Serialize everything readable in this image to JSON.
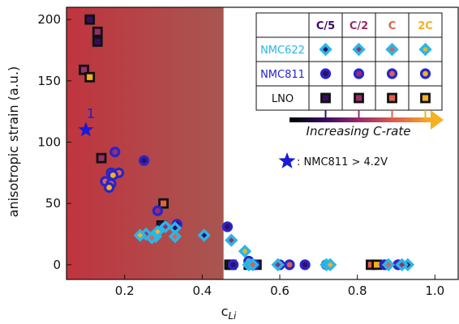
{
  "chart_data": {
    "type": "scatter",
    "xlabel": "c",
    "xlabel_sub": "Li",
    "ylabel": "anisotropic strain (a.u.)",
    "xlim": [
      0.05,
      1.06
    ],
    "ylim": [
      -12,
      210
    ],
    "x_ticks": [
      0.2,
      0.4,
      0.6,
      0.8,
      1.0
    ],
    "x_tick_labels": [
      "0.2",
      "0.4",
      "0.6",
      "0.8",
      "1.0"
    ],
    "y_ticks": [
      0,
      50,
      100,
      150,
      200
    ],
    "y_tick_labels": [
      "0",
      "50",
      "100",
      "150",
      "200"
    ],
    "shaded_region": {
      "x_start": 0.05,
      "x_end": 0.455,
      "color_left": "#c0343f",
      "color_right": "#a85651"
    },
    "rate_colors": {
      "C/5": "#3a0b63",
      "C/2": "#9a2d6b",
      "C": "#e0604a",
      "2C": "#f6b021"
    },
    "material_styles": {
      "NMC622": {
        "marker": "diamond",
        "edge": "#29b6e8"
      },
      "NMC811": {
        "marker": "circle",
        "edge": "#2626c9"
      },
      "LNO": {
        "marker": "square",
        "edge": "#111111"
      }
    },
    "legend": {
      "columns": [
        "C/5",
        "C/2",
        "C",
        "2C"
      ],
      "rows": [
        "NMC622",
        "NMC811",
        "LNO"
      ],
      "gradient_label": "Increasing C-rate",
      "placement": "top-right"
    },
    "special_point": {
      "x": 0.1,
      "y": 110,
      "label": "1",
      "color": "#1a1ad6",
      "legend_label": ": NMC811 > 4.2V"
    },
    "series": [
      {
        "material": "LNO",
        "rate": "C/5",
        "points": [
          [
            0.11,
            200
          ],
          [
            0.13,
            182
          ],
          [
            0.295,
            32
          ],
          [
            0.47,
            0
          ],
          [
            0.52,
            0
          ]
        ]
      },
      {
        "material": "LNO",
        "rate": "C/2",
        "points": [
          [
            0.095,
            159
          ],
          [
            0.13,
            190
          ],
          [
            0.14,
            87
          ],
          [
            0.475,
            0
          ]
        ]
      },
      {
        "material": "LNO",
        "rate": "C",
        "points": [
          [
            0.3,
            50
          ],
          [
            0.54,
            0
          ],
          [
            0.835,
            0
          ]
        ]
      },
      {
        "material": "LNO",
        "rate": "2C",
        "points": [
          [
            0.11,
            153
          ],
          [
            0.85,
            0
          ]
        ]
      },
      {
        "material": "NMC811",
        "rate": "C/5",
        "points": [
          [
            0.25,
            85
          ],
          [
            0.335,
            33
          ],
          [
            0.465,
            31
          ],
          [
            0.48,
            0
          ],
          [
            0.665,
            0
          ],
          [
            0.87,
            0
          ]
        ]
      },
      {
        "material": "NMC811",
        "rate": "C/2",
        "points": [
          [
            0.175,
            92
          ],
          [
            0.165,
            75
          ],
          [
            0.285,
            44
          ],
          [
            0.535,
            0
          ],
          [
            0.905,
            0
          ]
        ]
      },
      {
        "material": "NMC811",
        "rate": "C",
        "points": [
          [
            0.15,
            68
          ],
          [
            0.165,
            66
          ],
          [
            0.185,
            75
          ],
          [
            0.6,
            0
          ],
          [
            0.625,
            0
          ]
        ]
      },
      {
        "material": "NMC811",
        "rate": "2C",
        "points": [
          [
            0.16,
            63
          ],
          [
            0.17,
            73
          ],
          [
            0.52,
            3
          ],
          [
            0.72,
            0
          ]
        ]
      },
      {
        "material": "NMC622",
        "rate": "C/5",
        "points": [
          [
            0.28,
            23
          ],
          [
            0.33,
            30
          ],
          [
            0.405,
            24
          ],
          [
            0.52,
            0
          ],
          [
            0.72,
            0
          ],
          [
            0.93,
            0
          ]
        ]
      },
      {
        "material": "NMC622",
        "rate": "C/2",
        "points": [
          [
            0.255,
            25
          ],
          [
            0.305,
            31
          ],
          [
            0.475,
            20
          ],
          [
            0.595,
            0
          ],
          [
            0.915,
            0
          ]
        ]
      },
      {
        "material": "NMC622",
        "rate": "C",
        "points": [
          [
            0.27,
            22
          ],
          [
            0.33,
            23
          ],
          [
            0.53,
            0
          ],
          [
            0.88,
            0
          ]
        ]
      },
      {
        "material": "NMC622",
        "rate": "2C",
        "points": [
          [
            0.24,
            24
          ],
          [
            0.285,
            27
          ],
          [
            0.51,
            11
          ],
          [
            0.73,
            0
          ]
        ]
      }
    ]
  }
}
